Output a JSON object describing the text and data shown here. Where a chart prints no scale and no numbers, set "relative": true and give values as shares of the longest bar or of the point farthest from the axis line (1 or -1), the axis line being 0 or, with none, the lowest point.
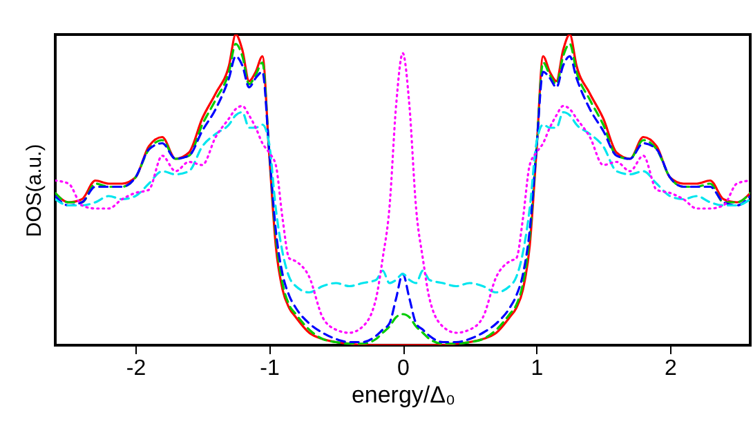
{
  "chart_data": {
    "type": "line",
    "xlabel": "energy/Δ₀",
    "ylabel": "DOS(a.u.)",
    "relative": true,
    "xlim": [
      -2.6,
      2.6
    ],
    "xticks": [
      -2,
      -1,
      0,
      1,
      2
    ],
    "grid": false,
    "marker": "none",
    "x": [
      -2.6,
      -2.5,
      -2.4,
      -2.3,
      -2.2,
      -2.1,
      -2.0,
      -1.9,
      -1.8,
      -1.7,
      -1.6,
      -1.5,
      -1.4,
      -1.3,
      -1.25,
      -1.2,
      -1.15,
      -1.1,
      -1.05,
      -1.0,
      -0.95,
      -0.9,
      -0.85,
      -0.8,
      -0.7,
      -0.6,
      -0.5,
      -0.4,
      -0.3,
      -0.2,
      -0.15,
      -0.1,
      -0.05,
      0,
      0.05,
      0.1,
      0.15,
      0.2,
      0.3,
      0.4,
      0.5,
      0.6,
      0.7,
      0.8,
      0.85,
      0.9,
      0.95,
      1.0,
      1.05,
      1.1,
      1.15,
      1.2,
      1.25,
      1.3,
      1.4,
      1.5,
      1.6,
      1.7,
      1.8,
      1.9,
      2.0,
      2.1,
      2.2,
      2.3,
      2.4,
      2.5,
      2.6
    ],
    "series": [
      {
        "color": "#ff0000",
        "line_style": "solid",
        "values": [
          0.49,
          0.46,
          0.47,
          0.53,
          0.52,
          0.52,
          0.54,
          0.64,
          0.67,
          0.6,
          0.62,
          0.73,
          0.81,
          0.9,
          1.0,
          0.95,
          0.85,
          0.88,
          0.93,
          0.62,
          0.32,
          0.18,
          0.12,
          0.09,
          0.04,
          0.02,
          0.01,
          0.005,
          0.0,
          0.0,
          0.0,
          0.0,
          0.0,
          0.0,
          0.0,
          0.0,
          0.0,
          0.0,
          0.0,
          0.005,
          0.01,
          0.02,
          0.04,
          0.09,
          0.12,
          0.18,
          0.32,
          0.62,
          0.93,
          0.88,
          0.85,
          0.95,
          1.0,
          0.9,
          0.81,
          0.73,
          0.62,
          0.6,
          0.67,
          0.64,
          0.54,
          0.52,
          0.52,
          0.53,
          0.47,
          0.46,
          0.49
        ]
      },
      {
        "color": "#00cc00",
        "line_style": "dashed",
        "values": [
          0.49,
          0.46,
          0.46,
          0.52,
          0.51,
          0.51,
          0.54,
          0.63,
          0.66,
          0.6,
          0.61,
          0.71,
          0.79,
          0.88,
          0.97,
          0.93,
          0.84,
          0.87,
          0.91,
          0.63,
          0.35,
          0.2,
          0.13,
          0.1,
          0.05,
          0.02,
          0.01,
          0.005,
          0.005,
          0.02,
          0.04,
          0.06,
          0.09,
          0.1,
          0.09,
          0.06,
          0.04,
          0.02,
          0.005,
          0.005,
          0.01,
          0.02,
          0.05,
          0.1,
          0.13,
          0.2,
          0.35,
          0.63,
          0.91,
          0.87,
          0.84,
          0.93,
          0.97,
          0.88,
          0.79,
          0.71,
          0.61,
          0.6,
          0.66,
          0.63,
          0.54,
          0.51,
          0.51,
          0.52,
          0.46,
          0.46,
          0.49
        ]
      },
      {
        "color": "#0000ff",
        "line_style": "dashed",
        "values": [
          0.48,
          0.45,
          0.46,
          0.51,
          0.51,
          0.51,
          0.54,
          0.63,
          0.65,
          0.6,
          0.61,
          0.69,
          0.76,
          0.86,
          0.93,
          0.9,
          0.83,
          0.86,
          0.88,
          0.63,
          0.37,
          0.23,
          0.16,
          0.12,
          0.07,
          0.04,
          0.02,
          0.01,
          0.01,
          0.03,
          0.05,
          0.07,
          0.15,
          0.23,
          0.15,
          0.07,
          0.05,
          0.03,
          0.01,
          0.01,
          0.02,
          0.04,
          0.07,
          0.12,
          0.16,
          0.23,
          0.37,
          0.63,
          0.88,
          0.86,
          0.83,
          0.9,
          0.93,
          0.86,
          0.76,
          0.69,
          0.61,
          0.6,
          0.65,
          0.63,
          0.54,
          0.51,
          0.51,
          0.51,
          0.46,
          0.45,
          0.48
        ]
      },
      {
        "color": "#00e5ee",
        "line_style": "dashed",
        "values": [
          0.47,
          0.45,
          0.45,
          0.46,
          0.48,
          0.47,
          0.48,
          0.52,
          0.56,
          0.55,
          0.56,
          0.64,
          0.68,
          0.71,
          0.74,
          0.75,
          0.7,
          0.7,
          0.71,
          0.65,
          0.44,
          0.3,
          0.22,
          0.19,
          0.17,
          0.19,
          0.2,
          0.19,
          0.2,
          0.21,
          0.24,
          0.2,
          0.21,
          0.23,
          0.21,
          0.2,
          0.24,
          0.21,
          0.2,
          0.19,
          0.2,
          0.19,
          0.17,
          0.19,
          0.22,
          0.3,
          0.44,
          0.65,
          0.71,
          0.7,
          0.7,
          0.75,
          0.74,
          0.71,
          0.68,
          0.64,
          0.56,
          0.55,
          0.56,
          0.52,
          0.48,
          0.47,
          0.48,
          0.46,
          0.45,
          0.45,
          0.47
        ]
      },
      {
        "color": "#ff00ff",
        "line_style": "dotted",
        "values": [
          0.53,
          0.52,
          0.45,
          0.44,
          0.44,
          0.47,
          0.49,
          0.5,
          0.61,
          0.56,
          0.59,
          0.58,
          0.67,
          0.73,
          0.76,
          0.77,
          0.74,
          0.7,
          0.65,
          0.62,
          0.58,
          0.41,
          0.28,
          0.27,
          0.22,
          0.09,
          0.05,
          0.04,
          0.06,
          0.15,
          0.28,
          0.44,
          0.77,
          0.94,
          0.77,
          0.44,
          0.28,
          0.15,
          0.06,
          0.04,
          0.05,
          0.09,
          0.22,
          0.27,
          0.28,
          0.41,
          0.58,
          0.62,
          0.65,
          0.7,
          0.74,
          0.77,
          0.76,
          0.73,
          0.67,
          0.58,
          0.59,
          0.56,
          0.61,
          0.5,
          0.49,
          0.47,
          0.44,
          0.44,
          0.45,
          0.52,
          0.53
        ]
      }
    ]
  }
}
